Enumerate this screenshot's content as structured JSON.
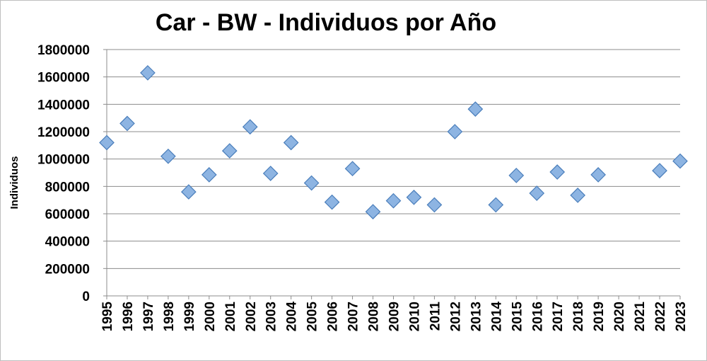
{
  "chart_data": {
    "type": "scatter",
    "title": "Car - BW  - Individuos por Año",
    "xlabel": "",
    "ylabel": "Individuos",
    "ylim": [
      0,
      1800000
    ],
    "yticks": [
      0,
      200000,
      400000,
      600000,
      800000,
      1000000,
      1200000,
      1400000,
      1600000,
      1800000
    ],
    "grid": true,
    "legend": "none",
    "marker": "diamond",
    "marker_color": "#8db4e2",
    "marker_edge_color": "#4a7ebb",
    "categories": [
      "1995",
      "1996",
      "1997",
      "1998",
      "1999",
      "2000",
      "2001",
      "2002",
      "2003",
      "2004",
      "2005",
      "2006",
      "2007",
      "2008",
      "2009",
      "2010",
      "2011",
      "2012",
      "2013",
      "2014",
      "2015",
      "2016",
      "2017",
      "2018",
      "2019",
      "2020",
      "2021",
      "2022",
      "2023"
    ],
    "values": [
      1120000,
      1260000,
      1630000,
      1020000,
      760000,
      885000,
      1060000,
      1235000,
      895000,
      1120000,
      825000,
      685000,
      930000,
      615000,
      695000,
      720000,
      665000,
      1200000,
      1365000,
      665000,
      880000,
      750000,
      905000,
      735000,
      885000,
      null,
      null,
      915000,
      985000
    ]
  }
}
